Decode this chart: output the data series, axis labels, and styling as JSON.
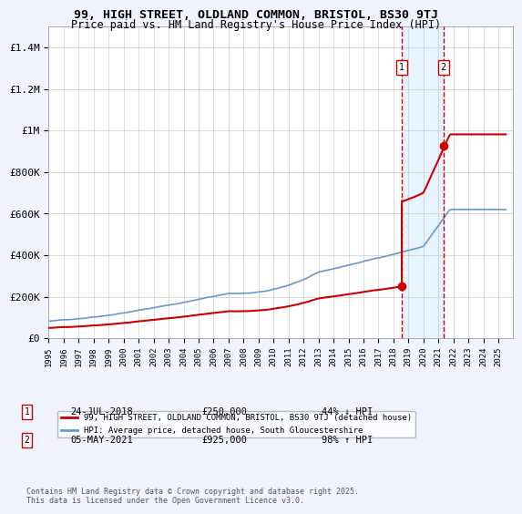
{
  "title_line1": "99, HIGH STREET, OLDLAND COMMON, BRISTOL, BS30 9TJ",
  "title_line2": "Price paid vs. HM Land Registry's House Price Index (HPI)",
  "background_color": "#f0f4ff",
  "plot_bg_color": "#ffffff",
  "ylabel": "",
  "ylim": [
    0,
    1500000
  ],
  "yticks": [
    0,
    200000,
    400000,
    600000,
    800000,
    1000000,
    1200000,
    1400000
  ],
  "ytick_labels": [
    "£0",
    "£200K",
    "£400K",
    "£600K",
    "£800K",
    "£1M",
    "£1.2M",
    "£1.4M"
  ],
  "hpi_color": "#6699cc",
  "price_color": "#cc0000",
  "marker_color": "#cc0000",
  "vline_color": "#cc0000",
  "shade_color": "#ddeeff",
  "point1_date_num": 2018.56,
  "point1_price": 250000,
  "point2_date_num": 2021.34,
  "point2_price": 925000,
  "point1_label": "1",
  "point2_label": "2",
  "legend_label_price": "99, HIGH STREET, OLDLAND COMMON, BRISTOL, BS30 9TJ (detached house)",
  "legend_label_hpi": "HPI: Average price, detached house, South Gloucestershire",
  "note1_num": "1",
  "note1_date": "24-JUL-2018",
  "note1_price": "£250,000",
  "note1_change": "44% ↓ HPI",
  "note2_num": "2",
  "note2_date": "05-MAY-2021",
  "note2_price": "£925,000",
  "note2_change": "98% ↑ HPI",
  "footer": "Contains HM Land Registry data © Crown copyright and database right 2025.\nThis data is licensed under the Open Government Licence v3.0.",
  "xmin": 1995,
  "xmax": 2026
}
